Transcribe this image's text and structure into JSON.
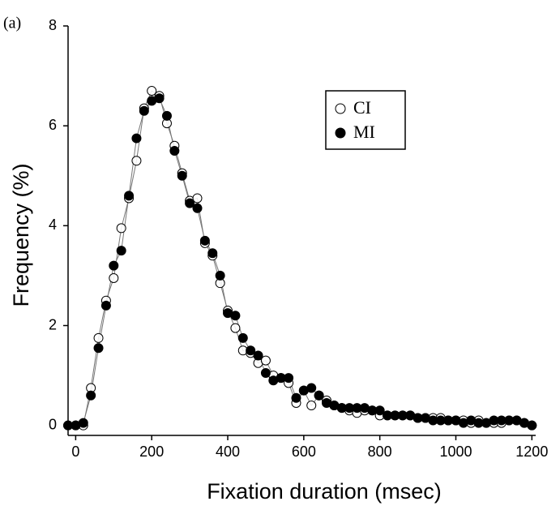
{
  "chart_data": {
    "type": "scatter-line",
    "panel_label": "(a)",
    "x_label": "Fixation duration (msec)",
    "y_label": "Frequency (%)",
    "x": [
      -20,
      0,
      20,
      40,
      60,
      80,
      100,
      120,
      140,
      160,
      180,
      200,
      220,
      240,
      260,
      280,
      300,
      320,
      340,
      360,
      380,
      400,
      420,
      440,
      460,
      480,
      500,
      520,
      540,
      560,
      580,
      600,
      620,
      640,
      660,
      680,
      700,
      720,
      740,
      760,
      780,
      800,
      820,
      840,
      860,
      880,
      900,
      920,
      940,
      960,
      980,
      1000,
      1020,
      1040,
      1060,
      1080,
      1100,
      1120,
      1140,
      1160,
      1180,
      1200
    ],
    "series": [
      {
        "name": "CI",
        "color": "#000000",
        "marker": "open",
        "values": [
          0.0,
          0.0,
          0.0,
          0.75,
          1.75,
          2.5,
          2.95,
          3.95,
          4.55,
          5.3,
          6.35,
          6.7,
          6.6,
          6.05,
          5.6,
          5.05,
          4.5,
          4.55,
          3.65,
          3.4,
          2.85,
          2.3,
          1.95,
          1.5,
          1.45,
          1.25,
          1.3,
          1.0,
          0.95,
          0.85,
          0.45,
          0.7,
          0.4,
          0.6,
          0.5,
          0.4,
          0.35,
          0.3,
          0.25,
          0.3,
          0.3,
          0.2,
          0.2,
          0.2,
          0.2,
          0.2,
          0.15,
          0.15,
          0.15,
          0.15,
          0.1,
          0.1,
          0.1,
          0.05,
          0.1,
          0.05,
          0.05,
          0.05,
          0.1,
          0.1,
          0.05,
          0.0
        ]
      },
      {
        "name": "MI",
        "color": "#000000",
        "marker": "filled",
        "values": [
          0.0,
          0.0,
          0.05,
          0.6,
          1.55,
          2.4,
          3.2,
          3.5,
          4.6,
          5.75,
          6.3,
          6.5,
          6.55,
          6.2,
          5.5,
          5.0,
          4.45,
          4.35,
          3.7,
          3.45,
          3.0,
          2.25,
          2.2,
          1.75,
          1.5,
          1.4,
          1.05,
          0.9,
          0.95,
          0.95,
          0.55,
          0.7,
          0.75,
          0.6,
          0.45,
          0.4,
          0.35,
          0.35,
          0.35,
          0.35,
          0.3,
          0.3,
          0.2,
          0.2,
          0.2,
          0.2,
          0.15,
          0.15,
          0.1,
          0.1,
          0.1,
          0.1,
          0.05,
          0.1,
          0.05,
          0.05,
          0.1,
          0.1,
          0.1,
          0.1,
          0.05,
          0.0
        ]
      }
    ],
    "xlim": [
      -20,
      1210
    ],
    "ylim": [
      -0.2,
      8
    ],
    "xticks": [
      0,
      200,
      400,
      600,
      800,
      1000,
      1200
    ],
    "yticks": [
      0,
      2,
      4,
      6,
      8
    ],
    "line_color": "#777777"
  }
}
